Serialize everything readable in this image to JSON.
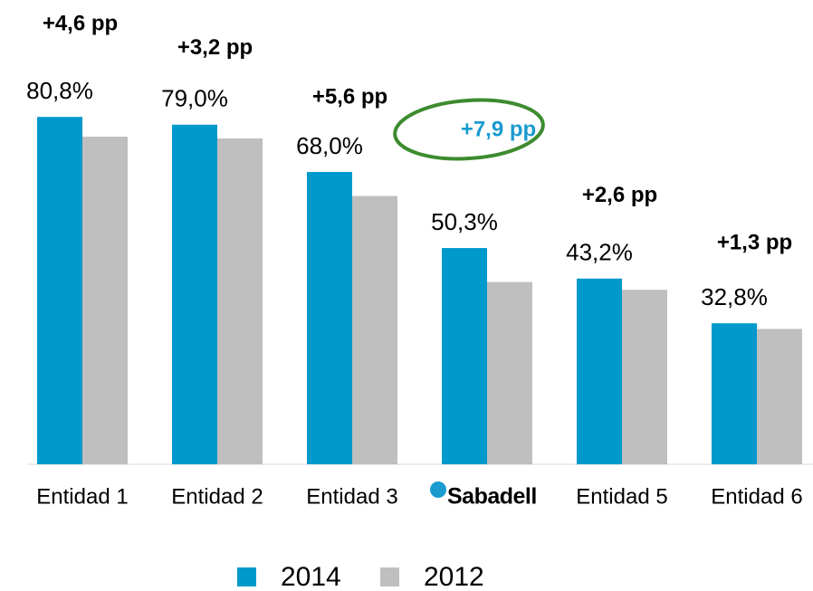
{
  "chart_data": {
    "type": "bar",
    "categories": [
      "Entidad 1",
      "Entidad 2",
      "Entidad 3",
      "Sabadell",
      "Entidad 5",
      "Entidad 6"
    ],
    "series": [
      {
        "name": "2014",
        "color": "#0099cc",
        "values": [
          80.8,
          79.0,
          68.0,
          50.3,
          43.2,
          32.8
        ],
        "value_labels": [
          "80,8%",
          "79,0%",
          "68,0%",
          "50,3%",
          "43,2%",
          "32,8%"
        ]
      },
      {
        "name": "2012",
        "color": "#bfbfbf",
        "values": [
          76.2,
          75.8,
          62.4,
          42.4,
          40.6,
          31.5
        ]
      }
    ],
    "annotations": [
      {
        "text": "+4,6 pp",
        "color": "#000000"
      },
      {
        "text": "+3,2 pp",
        "color": "#000000"
      },
      {
        "text": "+5,6 pp",
        "color": "#000000"
      },
      {
        "text": "+7,9 pp",
        "color": "#1a9bcf"
      },
      {
        "text": "+2,6 pp",
        "color": "#000000"
      },
      {
        "text": "+1,3 pp",
        "color": "#000000"
      }
    ],
    "ylim": [
      0,
      85
    ],
    "legend": "bottom"
  }
}
